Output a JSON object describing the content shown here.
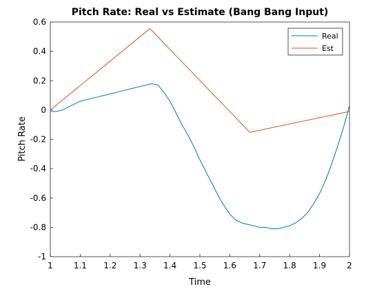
{
  "chart_data": {
    "type": "line",
    "title": "Pitch Rate: Real vs Estimate (Bang Bang Input)",
    "xlabel": "Time",
    "ylabel": "Pitch Rate",
    "xlim": [
      1,
      2
    ],
    "ylim": [
      -1,
      0.6
    ],
    "xticks": [
      "1",
      "1.1",
      "1.2",
      "1.3",
      "1.4",
      "1.5",
      "1.6",
      "1.7",
      "1.8",
      "1.9",
      "2"
    ],
    "yticks": [
      "-1",
      "-0.8",
      "-0.6",
      "-0.4",
      "-0.2",
      "0",
      "0.2",
      "0.4",
      "0.6"
    ],
    "grid": false,
    "legend_position": "top-right",
    "series": [
      {
        "name": "Real",
        "color": "#0072BD",
        "x": [
          1.0,
          1.02,
          1.04,
          1.06,
          1.08,
          1.1,
          1.12,
          1.14,
          1.16,
          1.18,
          1.2,
          1.22,
          1.24,
          1.26,
          1.28,
          1.3,
          1.32,
          1.34,
          1.36,
          1.38,
          1.4,
          1.42,
          1.44,
          1.46,
          1.48,
          1.5,
          1.52,
          1.54,
          1.56,
          1.58,
          1.6,
          1.62,
          1.64,
          1.66,
          1.68,
          1.7,
          1.72,
          1.74,
          1.76,
          1.78,
          1.8,
          1.82,
          1.84,
          1.86,
          1.88,
          1.9,
          1.92,
          1.94,
          1.96,
          1.98,
          2.0
        ],
        "y": [
          -0.01,
          -0.01,
          0.0,
          0.02,
          0.04,
          0.06,
          0.07,
          0.08,
          0.09,
          0.1,
          0.11,
          0.12,
          0.13,
          0.14,
          0.15,
          0.16,
          0.17,
          0.18,
          0.17,
          0.12,
          0.06,
          -0.02,
          -0.1,
          -0.17,
          -0.25,
          -0.34,
          -0.42,
          -0.5,
          -0.58,
          -0.65,
          -0.71,
          -0.75,
          -0.77,
          -0.78,
          -0.79,
          -0.8,
          -0.8,
          -0.81,
          -0.81,
          -0.8,
          -0.79,
          -0.77,
          -0.74,
          -0.7,
          -0.64,
          -0.57,
          -0.48,
          -0.37,
          -0.25,
          -0.12,
          0.03
        ]
      },
      {
        "name": "Est",
        "color": "#D95319",
        "x": [
          1.0,
          1.333,
          1.667,
          2.0
        ],
        "y": [
          0.0,
          0.555,
          -0.152,
          -0.01
        ]
      }
    ]
  }
}
